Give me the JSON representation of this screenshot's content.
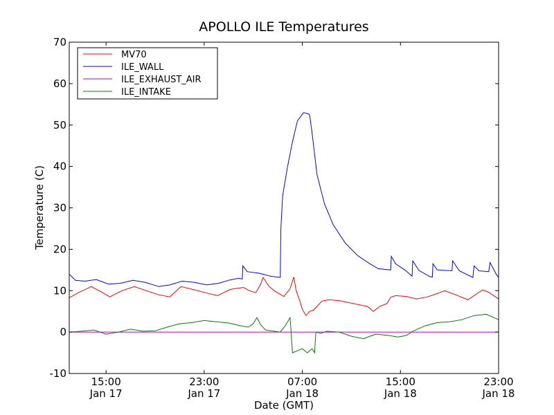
{
  "chart_data": {
    "type": "line",
    "title": "APOLLO ILE Temperatures",
    "xlabel": "Date (GMT)",
    "ylabel": "Temperature (C)",
    "xlim": [
      12.0,
      47.0
    ],
    "ylim": [
      -10,
      70
    ],
    "yticks": [
      -10,
      0,
      10,
      20,
      30,
      40,
      50,
      60,
      70
    ],
    "xticks": [
      {
        "x": 15,
        "time": "15:00",
        "date": "Jan 17"
      },
      {
        "x": 23,
        "time": "23:00",
        "date": "Jan 17"
      },
      {
        "x": 31,
        "time": "07:00",
        "date": "Jan 18"
      },
      {
        "x": 39,
        "time": "15:00",
        "date": "Jan 18"
      },
      {
        "x": 47,
        "time": "23:00",
        "date": "Jan 18"
      }
    ],
    "legend_position": "top-left",
    "series": [
      {
        "name": "MV70",
        "color": "#ff0000",
        "points": [
          [
            12.0,
            8.3
          ],
          [
            12.8,
            9.6
          ],
          [
            13.8,
            11.0
          ],
          [
            14.8,
            9.4
          ],
          [
            15.3,
            8.5
          ],
          [
            16.3,
            10.0
          ],
          [
            17.3,
            11.0
          ],
          [
            18.3,
            10.0
          ],
          [
            19.3,
            9.0
          ],
          [
            20.2,
            8.5
          ],
          [
            21.1,
            11.0
          ],
          [
            22.1,
            10.3
          ],
          [
            23.1,
            9.5
          ],
          [
            24.1,
            8.8
          ],
          [
            25.1,
            10.3
          ],
          [
            26.2,
            10.8
          ],
          [
            26.7,
            10.0
          ],
          [
            27.2,
            9.5
          ],
          [
            27.6,
            11.5
          ],
          [
            27.8,
            13.2
          ],
          [
            28.3,
            11.0
          ],
          [
            28.8,
            9.8
          ],
          [
            29.5,
            8.6
          ],
          [
            30.0,
            10.5
          ],
          [
            30.3,
            13.3
          ],
          [
            30.5,
            10.0
          ],
          [
            30.8,
            7.5
          ],
          [
            31.0,
            5.5
          ],
          [
            31.3,
            4.0
          ],
          [
            31.6,
            5.0
          ],
          [
            31.9,
            5.3
          ],
          [
            32.2,
            6.2
          ],
          [
            32.6,
            7.5
          ],
          [
            33.2,
            7.8
          ],
          [
            34.0,
            7.6
          ],
          [
            35.0,
            7.0
          ],
          [
            35.8,
            6.5
          ],
          [
            36.3,
            6.2
          ],
          [
            36.8,
            5.0
          ],
          [
            37.3,
            6.2
          ],
          [
            37.9,
            6.9
          ],
          [
            38.2,
            8.4
          ],
          [
            38.6,
            8.8
          ],
          [
            39.5,
            8.6
          ],
          [
            40.3,
            8.0
          ],
          [
            41.2,
            8.5
          ],
          [
            42.0,
            9.3
          ],
          [
            42.6,
            10.0
          ],
          [
            43.5,
            9.0
          ],
          [
            44.5,
            7.8
          ],
          [
            45.2,
            9.2
          ],
          [
            45.7,
            10.2
          ],
          [
            46.2,
            9.6
          ],
          [
            47.0,
            8.0
          ]
        ]
      },
      {
        "name": "ILE_WALL",
        "color": "#0000ff",
        "points": [
          [
            12.0,
            14.0
          ],
          [
            12.5,
            12.5
          ],
          [
            13.3,
            12.3
          ],
          [
            14.2,
            12.7
          ],
          [
            15.2,
            11.6
          ],
          [
            16.2,
            11.8
          ],
          [
            17.2,
            12.5
          ],
          [
            18.2,
            12.0
          ],
          [
            19.3,
            11.0
          ],
          [
            20.2,
            11.4
          ],
          [
            21.2,
            12.3
          ],
          [
            22.2,
            12.0
          ],
          [
            23.2,
            11.4
          ],
          [
            24.2,
            11.8
          ],
          [
            25.1,
            12.6
          ],
          [
            25.8,
            13.0
          ],
          [
            26.1,
            12.8
          ],
          [
            26.15,
            16.0
          ],
          [
            26.5,
            14.6
          ],
          [
            27.5,
            14.2
          ],
          [
            28.4,
            13.5
          ],
          [
            29.2,
            13.2
          ],
          [
            29.25,
            25.0
          ],
          [
            29.4,
            33.0
          ],
          [
            29.8,
            40.0
          ],
          [
            30.2,
            46.0
          ],
          [
            30.6,
            51.0
          ],
          [
            31.1,
            53.0
          ],
          [
            31.5,
            52.7
          ],
          [
            31.6,
            52.4
          ],
          [
            31.8,
            48.0
          ],
          [
            32.2,
            38.0
          ],
          [
            32.8,
            31.0
          ],
          [
            33.5,
            26.0
          ],
          [
            34.5,
            21.5
          ],
          [
            35.5,
            18.5
          ],
          [
            36.5,
            16.5
          ],
          [
            37.2,
            15.3
          ],
          [
            38.2,
            15.0
          ],
          [
            38.25,
            18.3
          ],
          [
            38.6,
            16.5
          ],
          [
            39.4,
            14.9
          ],
          [
            39.95,
            13.5
          ],
          [
            40.0,
            17.2
          ],
          [
            40.5,
            14.9
          ],
          [
            41.4,
            13.4
          ],
          [
            41.6,
            13.3
          ],
          [
            41.65,
            16.5
          ],
          [
            42.0,
            15.0
          ],
          [
            43.2,
            14.8
          ],
          [
            43.25,
            17.2
          ],
          [
            43.8,
            14.8
          ],
          [
            44.9,
            13.2
          ],
          [
            45.0,
            16.0
          ],
          [
            45.4,
            14.8
          ],
          [
            46.2,
            14.6
          ],
          [
            46.3,
            16.8
          ],
          [
            46.8,
            14.0
          ],
          [
            47.0,
            13.2
          ]
        ]
      },
      {
        "name": "ILE_EXHAUST_AIR",
        "color": "#bf00bf",
        "points": [
          [
            12.0,
            0.0
          ],
          [
            47.0,
            0.0
          ]
        ]
      },
      {
        "name": "ILE_INTAKE",
        "color": "#008000",
        "points": [
          [
            12.0,
            0.0
          ],
          [
            13.0,
            0.2
          ],
          [
            14.0,
            0.5
          ],
          [
            15.0,
            -0.5
          ],
          [
            16.0,
            0.0
          ],
          [
            17.0,
            0.7
          ],
          [
            18.0,
            0.2
          ],
          [
            19.0,
            0.3
          ],
          [
            20.0,
            1.2
          ],
          [
            21.0,
            2.0
          ],
          [
            22.0,
            2.3
          ],
          [
            23.0,
            2.8
          ],
          [
            24.0,
            2.5
          ],
          [
            25.0,
            2.2
          ],
          [
            26.0,
            1.5
          ],
          [
            26.6,
            1.2
          ],
          [
            27.0,
            2.0
          ],
          [
            27.3,
            3.5
          ],
          [
            27.6,
            1.8
          ],
          [
            28.0,
            0.5
          ],
          [
            28.5,
            0.3
          ],
          [
            29.2,
            0.0
          ],
          [
            29.6,
            1.5
          ],
          [
            30.0,
            3.5
          ],
          [
            30.1,
            -0.5
          ],
          [
            30.2,
            -5.0
          ],
          [
            31.0,
            -4.0
          ],
          [
            31.4,
            -5.0
          ],
          [
            31.8,
            -4.0
          ],
          [
            32.0,
            -5.0
          ],
          [
            32.1,
            0.0
          ],
          [
            32.5,
            -0.3
          ],
          [
            33.0,
            0.2
          ],
          [
            34.0,
            0.0
          ],
          [
            35.0,
            -1.0
          ],
          [
            36.0,
            -1.6
          ],
          [
            36.5,
            -1.0
          ],
          [
            37.0,
            -0.5
          ],
          [
            38.0,
            -0.8
          ],
          [
            38.8,
            -1.2
          ],
          [
            39.5,
            -0.8
          ],
          [
            40.0,
            0.2
          ],
          [
            41.0,
            1.5
          ],
          [
            42.0,
            2.3
          ],
          [
            43.0,
            2.5
          ],
          [
            44.0,
            3.0
          ],
          [
            45.0,
            4.0
          ],
          [
            46.0,
            4.3
          ],
          [
            47.0,
            3.0
          ]
        ]
      }
    ]
  }
}
